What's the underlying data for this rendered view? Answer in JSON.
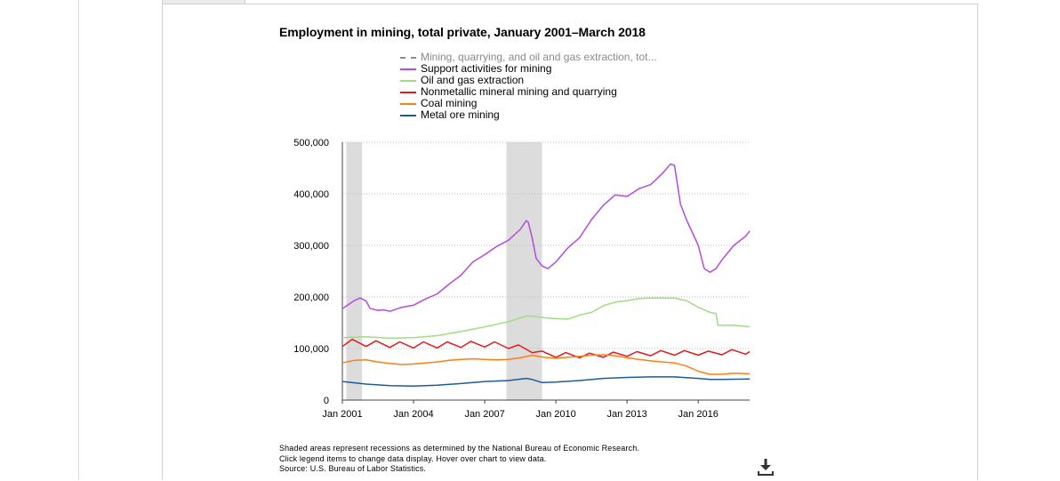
{
  "chart_data": {
    "type": "line",
    "title": "Employment in mining, total private, January 2001–March 2018",
    "xlabel": "",
    "ylabel": "",
    "x_tick_labels": [
      "Jan 2001",
      "Jan 2004",
      "Jan 2007",
      "Jan 2010",
      "Jan 2013",
      "Jan 2016"
    ],
    "x_tick_years": [
      2001,
      2004,
      2007,
      2010,
      2013,
      2016
    ],
    "y_tick_labels": [
      "500,000",
      "400,000",
      "300,000",
      "200,000",
      "100,000",
      "0"
    ],
    "y_tick_values": [
      500000,
      400000,
      300000,
      200000,
      100000,
      0
    ],
    "xlim": [
      "Jan 2001",
      "Mar 2018"
    ],
    "ylim": [
      0,
      500000
    ],
    "grid": true,
    "legend_position": "top",
    "recessions": [
      {
        "start": "Mar 2001",
        "end": "Nov 2001"
      },
      {
        "start": "Dec 2007",
        "end": "Jun 2009"
      }
    ],
    "series": [
      {
        "name": "Mining, quarrying, and oil and gas extraction, tot...",
        "color": "#8c8c8c",
        "dashed": true,
        "hidden": true,
        "points": []
      },
      {
        "name": "Support activities for mining",
        "color": "#b44be1",
        "points": [
          [
            "2001-01",
            177000
          ],
          [
            "2001-07",
            193000
          ],
          [
            "2001-10",
            198000
          ],
          [
            "2002-01",
            192000
          ],
          [
            "2002-03",
            178000
          ],
          [
            "2002-07",
            174000
          ],
          [
            "2002-10",
            175000
          ],
          [
            "2003-01",
            172000
          ],
          [
            "2003-07",
            180000
          ],
          [
            "2004-01",
            184000
          ],
          [
            "2004-07",
            196000
          ],
          [
            "2005-01",
            206000
          ],
          [
            "2005-07",
            225000
          ],
          [
            "2006-01",
            242000
          ],
          [
            "2006-07",
            268000
          ],
          [
            "2007-01",
            282000
          ],
          [
            "2007-07",
            298000
          ],
          [
            "2008-01",
            310000
          ],
          [
            "2008-07",
            331000
          ],
          [
            "2008-10",
            348000
          ],
          [
            "2008-11",
            345000
          ],
          [
            "2009-01",
            315000
          ],
          [
            "2009-03",
            275000
          ],
          [
            "2009-06",
            260000
          ],
          [
            "2009-09",
            255000
          ],
          [
            "2010-01",
            268000
          ],
          [
            "2010-07",
            295000
          ],
          [
            "2011-01",
            315000
          ],
          [
            "2011-07",
            350000
          ],
          [
            "2012-01",
            378000
          ],
          [
            "2012-07",
            398000
          ],
          [
            "2013-01",
            395000
          ],
          [
            "2013-07",
            410000
          ],
          [
            "2014-01",
            418000
          ],
          [
            "2014-07",
            440000
          ],
          [
            "2014-11",
            458000
          ],
          [
            "2015-01",
            455000
          ],
          [
            "2015-04",
            380000
          ],
          [
            "2015-07",
            350000
          ],
          [
            "2016-01",
            300000
          ],
          [
            "2016-04",
            255000
          ],
          [
            "2016-07",
            248000
          ],
          [
            "2016-10",
            255000
          ],
          [
            "2017-01",
            272000
          ],
          [
            "2017-07",
            300000
          ],
          [
            "2018-01",
            318000
          ],
          [
            "2018-03",
            328000
          ]
        ]
      },
      {
        "name": "Oil and gas extraction",
        "color": "#9fdc86",
        "points": [
          [
            "2001-01",
            121000
          ],
          [
            "2002-01",
            123000
          ],
          [
            "2003-01",
            120000
          ],
          [
            "2004-01",
            121000
          ],
          [
            "2005-01",
            125000
          ],
          [
            "2006-01",
            133000
          ],
          [
            "2007-01",
            142000
          ],
          [
            "2008-01",
            152000
          ],
          [
            "2008-10",
            163000
          ],
          [
            "2009-01",
            163000
          ],
          [
            "2009-07",
            160000
          ],
          [
            "2010-01",
            158000
          ],
          [
            "2010-07",
            157000
          ],
          [
            "2011-01",
            165000
          ],
          [
            "2011-07",
            170000
          ],
          [
            "2012-01",
            183000
          ],
          [
            "2012-07",
            190000
          ],
          [
            "2013-01",
            193000
          ],
          [
            "2013-07",
            197000
          ],
          [
            "2014-01",
            198000
          ],
          [
            "2014-07",
            198000
          ],
          [
            "2015-01",
            198000
          ],
          [
            "2015-07",
            193000
          ],
          [
            "2016-01",
            180000
          ],
          [
            "2016-07",
            170000
          ],
          [
            "2016-10",
            168000
          ],
          [
            "2016-11",
            145000
          ],
          [
            "2017-07",
            145000
          ],
          [
            "2018-03",
            142000
          ]
        ]
      },
      {
        "name": "Nonmetallic mineral mining and quarrying",
        "color": "#e31a1c",
        "points": [
          [
            "2001-01",
            104000
          ],
          [
            "2001-06",
            118000
          ],
          [
            "2002-01",
            104000
          ],
          [
            "2002-06",
            115000
          ],
          [
            "2003-01",
            102000
          ],
          [
            "2003-06",
            113000
          ],
          [
            "2004-01",
            101000
          ],
          [
            "2004-06",
            113000
          ],
          [
            "2005-01",
            101000
          ],
          [
            "2005-06",
            113000
          ],
          [
            "2006-01",
            102000
          ],
          [
            "2006-06",
            114000
          ],
          [
            "2007-01",
            103000
          ],
          [
            "2007-06",
            113000
          ],
          [
            "2008-01",
            100000
          ],
          [
            "2008-06",
            107000
          ],
          [
            "2009-01",
            92000
          ],
          [
            "2009-06",
            95000
          ],
          [
            "2010-01",
            83000
          ],
          [
            "2010-06",
            92000
          ],
          [
            "2011-01",
            82000
          ],
          [
            "2011-06",
            91000
          ],
          [
            "2012-01",
            83000
          ],
          [
            "2012-06",
            93000
          ],
          [
            "2013-01",
            85000
          ],
          [
            "2013-06",
            94000
          ],
          [
            "2014-01",
            86000
          ],
          [
            "2014-06",
            96000
          ],
          [
            "2015-01",
            87000
          ],
          [
            "2015-06",
            96000
          ],
          [
            "2016-01",
            87000
          ],
          [
            "2016-06",
            95000
          ],
          [
            "2017-01",
            88000
          ],
          [
            "2017-06",
            98000
          ],
          [
            "2018-01",
            89000
          ],
          [
            "2018-03",
            94000
          ]
        ]
      },
      {
        "name": "Coal mining",
        "color": "#ff7f0e",
        "points": [
          [
            "2001-01",
            72000
          ],
          [
            "2001-07",
            77000
          ],
          [
            "2002-01",
            78000
          ],
          [
            "2002-07",
            74000
          ],
          [
            "2003-01",
            71000
          ],
          [
            "2003-07",
            69000
          ],
          [
            "2004-01",
            70000
          ],
          [
            "2004-07",
            72000
          ],
          [
            "2005-01",
            74000
          ],
          [
            "2005-07",
            77000
          ],
          [
            "2006-01",
            79000
          ],
          [
            "2006-07",
            80000
          ],
          [
            "2007-01",
            79000
          ],
          [
            "2007-07",
            78000
          ],
          [
            "2008-01",
            79000
          ],
          [
            "2008-07",
            82000
          ],
          [
            "2009-01",
            87000
          ],
          [
            "2009-07",
            83000
          ],
          [
            "2010-01",
            81000
          ],
          [
            "2010-07",
            83000
          ],
          [
            "2011-01",
            85000
          ],
          [
            "2011-07",
            87000
          ],
          [
            "2012-01",
            88000
          ],
          [
            "2012-07",
            86000
          ],
          [
            "2013-01",
            82000
          ],
          [
            "2013-07",
            79000
          ],
          [
            "2014-01",
            76000
          ],
          [
            "2014-07",
            74000
          ],
          [
            "2015-01",
            72000
          ],
          [
            "2015-07",
            66000
          ],
          [
            "2016-01",
            56000
          ],
          [
            "2016-07",
            50000
          ],
          [
            "2017-01",
            50000
          ],
          [
            "2017-07",
            52000
          ],
          [
            "2018-03",
            51000
          ]
        ]
      },
      {
        "name": "Metal ore mining",
        "color": "#1f5b99",
        "points": [
          [
            "2001-01",
            36000
          ],
          [
            "2002-01",
            31000
          ],
          [
            "2003-01",
            28000
          ],
          [
            "2004-01",
            27000
          ],
          [
            "2005-01",
            29000
          ],
          [
            "2006-01",
            32000
          ],
          [
            "2007-01",
            36000
          ],
          [
            "2008-01",
            38000
          ],
          [
            "2008-10",
            42000
          ],
          [
            "2009-01",
            40000
          ],
          [
            "2009-06",
            34000
          ],
          [
            "2010-01",
            35000
          ],
          [
            "2011-01",
            38000
          ],
          [
            "2012-01",
            42000
          ],
          [
            "2013-01",
            44000
          ],
          [
            "2014-01",
            45000
          ],
          [
            "2015-01",
            45000
          ],
          [
            "2016-01",
            42000
          ],
          [
            "2016-07",
            40000
          ],
          [
            "2017-01",
            40000
          ],
          [
            "2018-03",
            41000
          ]
        ]
      }
    ]
  },
  "footer": {
    "line1": "Shaded areas represent recessions as determined by the National Bureau of Economic Research.",
    "line2": "Click legend items to change data display. Hover over chart to view data.",
    "line3": "Source: U.S. Bureau of Labor Statistics."
  },
  "download": {
    "icon": "download-icon"
  }
}
